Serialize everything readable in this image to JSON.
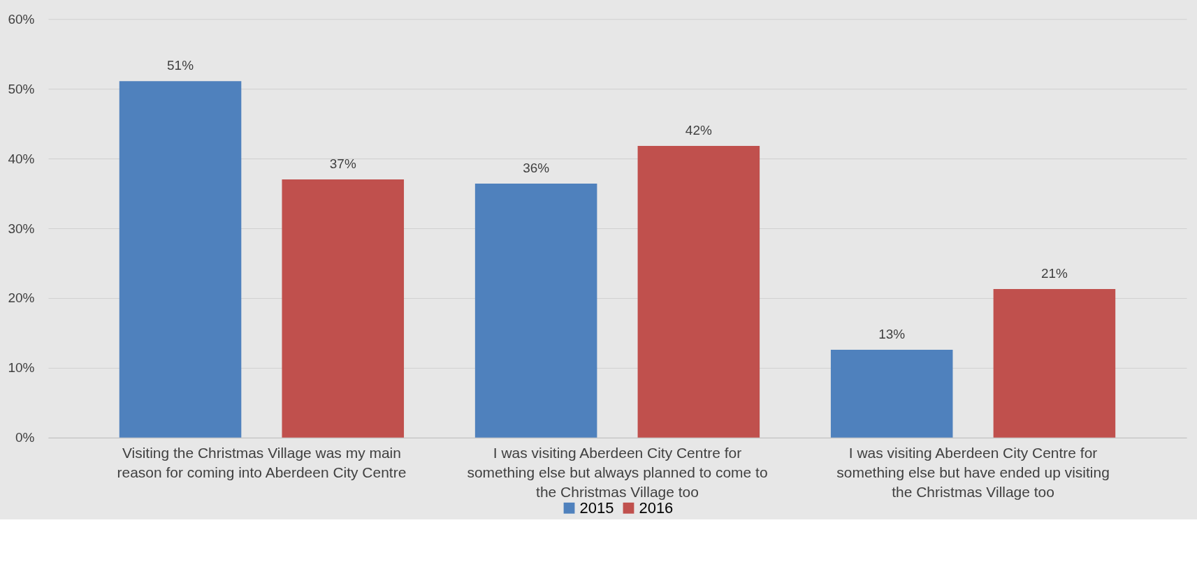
{
  "chart_data": {
    "type": "bar",
    "categories": [
      "Visiting the Christmas Village was my main reason for coming into Aberdeen City Centre",
      "I was visiting Aberdeen City Centre for something else but always planned to come to the Christmas Village too",
      "I was visiting Aberdeen City Centre for something else but have ended up visiting the Christmas Village too"
    ],
    "series": [
      {
        "name": "2015",
        "color": "#4f81bd",
        "values": [
          51.1,
          36.4,
          12.6
        ],
        "value_labels": [
          "51%",
          "36%",
          "13%"
        ]
      },
      {
        "name": "2016",
        "color": "#c0504d",
        "values": [
          37.0,
          41.8,
          21.3
        ],
        "value_labels": [
          "37%",
          "42%",
          "21%"
        ]
      }
    ],
    "ylim": [
      0,
      60
    ],
    "yticks": [
      {
        "value": 0,
        "label": "0%"
      },
      {
        "value": 10,
        "label": "10%"
      },
      {
        "value": 20,
        "label": "20%"
      },
      {
        "value": 30,
        "label": "30%"
      },
      {
        "value": 40,
        "label": "40%"
      },
      {
        "value": 50,
        "label": "50%"
      },
      {
        "value": 60,
        "label": "60%"
      }
    ],
    "grid": "y",
    "legend": "bottom"
  }
}
